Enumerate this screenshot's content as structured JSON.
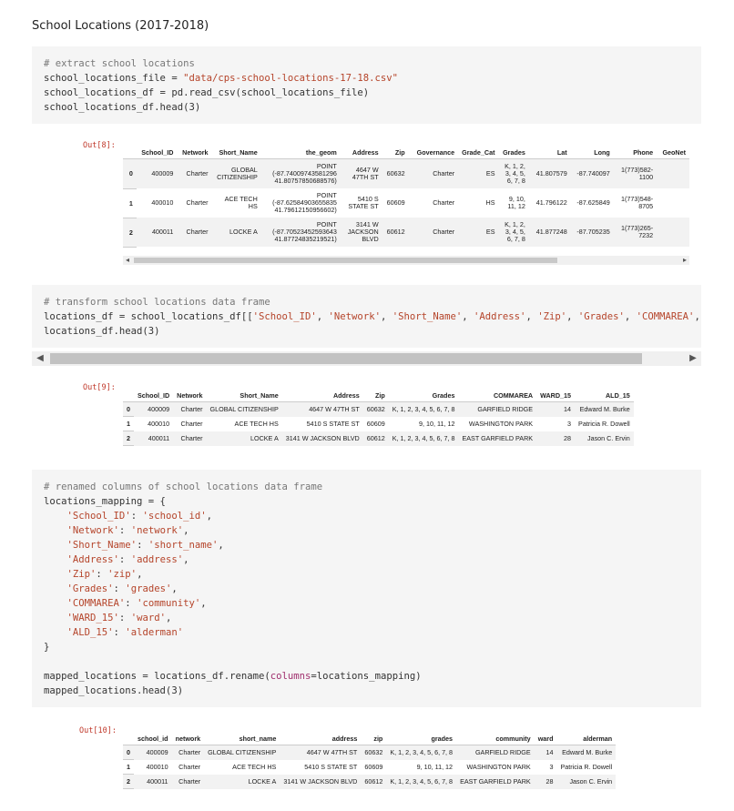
{
  "heading": "School Locations (2017-2018)",
  "cell1": {
    "lines": [
      {
        "parts": [
          {
            "t": "# extract school locations",
            "c": "comment"
          }
        ]
      },
      {
        "parts": [
          {
            "t": "school_locations_file = ",
            "c": ""
          },
          {
            "t": "\"data/cps-school-locations-17-18.csv\"",
            "c": "str"
          }
        ]
      },
      {
        "parts": [
          {
            "t": "school_locations_df = pd.read_csv(school_locations_file)",
            "c": ""
          }
        ]
      },
      {
        "parts": [
          {
            "t": "school_locations_df.head(3)",
            "c": ""
          }
        ]
      }
    ]
  },
  "out8": {
    "label": "Out[8]:",
    "columns": [
      "",
      "School_ID",
      "Network",
      "Short_Name",
      "the_geom",
      "Address",
      "Zip",
      "Governance",
      "Grade_Cat",
      "Grades",
      "Lat",
      "Long",
      "Phone",
      "GeoNet"
    ],
    "rows": [
      [
        "0",
        "400009",
        "Charter",
        "GLOBAL CITIZENSHIP",
        "POINT (-87.74009743581296 41.80757850688576)",
        "4647 W 47TH ST",
        "60632",
        "Charter",
        "ES",
        "K, 1, 2, 3, 4, 5, 6, 7, 8",
        "41.807579",
        "-87.740097",
        "1(773)582-1100",
        ""
      ],
      [
        "1",
        "400010",
        "Charter",
        "ACE TECH HS",
        "POINT (-87.62584903655835 41.79612150956602)",
        "5410 S STATE ST",
        "60609",
        "Charter",
        "HS",
        "9, 10, 11, 12",
        "41.796122",
        "-87.625849",
        "1(773)548-8705",
        ""
      ],
      [
        "2",
        "400011",
        "Charter",
        "LOCKE A",
        "POINT (-87.70523452593643 41.87724835219521)",
        "3141 W JACKSON BLVD",
        "60612",
        "Charter",
        "ES",
        "K, 1, 2, 3, 4, 5, 6, 7, 8",
        "41.877248",
        "-87.705235",
        "1(773)265-7232",
        ""
      ]
    ]
  },
  "cell2": {
    "lines": [
      {
        "parts": [
          {
            "t": "# transform school locations data frame",
            "c": "comment"
          }
        ]
      },
      {
        "parts": [
          {
            "t": "locations_df = school_locations_df[[",
            "c": ""
          },
          {
            "t": "'School_ID'",
            "c": "str"
          },
          {
            "t": ", ",
            "c": ""
          },
          {
            "t": "'Network'",
            "c": "str"
          },
          {
            "t": ", ",
            "c": ""
          },
          {
            "t": "'Short_Name'",
            "c": "str"
          },
          {
            "t": ", ",
            "c": ""
          },
          {
            "t": "'Address'",
            "c": "str"
          },
          {
            "t": ", ",
            "c": ""
          },
          {
            "t": "'Zip'",
            "c": "str"
          },
          {
            "t": ", ",
            "c": ""
          },
          {
            "t": "'Grades'",
            "c": "str"
          },
          {
            "t": ", ",
            "c": ""
          },
          {
            "t": "'COMMAREA'",
            "c": "str"
          },
          {
            "t": ", ",
            "c": ""
          },
          {
            "t": "'W",
            "c": "str"
          }
        ]
      },
      {
        "parts": [
          {
            "t": "locations_df.head(3)",
            "c": ""
          }
        ]
      }
    ]
  },
  "out9": {
    "label": "Out[9]:",
    "columns": [
      "",
      "School_ID",
      "Network",
      "Short_Name",
      "Address",
      "Zip",
      "Grades",
      "COMMAREA",
      "WARD_15",
      "ALD_15"
    ],
    "rows": [
      [
        "0",
        "400009",
        "Charter",
        "GLOBAL CITIZENSHIP",
        "4647 W 47TH ST",
        "60632",
        "K, 1, 2, 3, 4, 5, 6, 7, 8",
        "GARFIELD RIDGE",
        "14",
        "Edward M. Burke"
      ],
      [
        "1",
        "400010",
        "Charter",
        "ACE TECH HS",
        "5410 S STATE ST",
        "60609",
        "9, 10, 11, 12",
        "WASHINGTON PARK",
        "3",
        "Patricia R. Dowell"
      ],
      [
        "2",
        "400011",
        "Charter",
        "LOCKE A",
        "3141 W JACKSON BLVD",
        "60612",
        "K, 1, 2, 3, 4, 5, 6, 7, 8",
        "EAST GARFIELD PARK",
        "28",
        "Jason C. Ervin"
      ]
    ]
  },
  "cell3": {
    "lines": [
      {
        "parts": [
          {
            "t": "# renamed columns of school locations data frame",
            "c": "comment"
          }
        ]
      },
      {
        "parts": [
          {
            "t": "locations_mapping = {",
            "c": ""
          }
        ]
      },
      {
        "parts": [
          {
            "t": "    ",
            "c": ""
          },
          {
            "t": "'School_ID'",
            "c": "str"
          },
          {
            "t": ": ",
            "c": ""
          },
          {
            "t": "'school_id'",
            "c": "str"
          },
          {
            "t": ",",
            "c": ""
          }
        ]
      },
      {
        "parts": [
          {
            "t": "    ",
            "c": ""
          },
          {
            "t": "'Network'",
            "c": "str"
          },
          {
            "t": ": ",
            "c": ""
          },
          {
            "t": "'network'",
            "c": "str"
          },
          {
            "t": ",",
            "c": ""
          }
        ]
      },
      {
        "parts": [
          {
            "t": "    ",
            "c": ""
          },
          {
            "t": "'Short_Name'",
            "c": "str"
          },
          {
            "t": ": ",
            "c": ""
          },
          {
            "t": "'short_name'",
            "c": "str"
          },
          {
            "t": ",",
            "c": ""
          }
        ]
      },
      {
        "parts": [
          {
            "t": "    ",
            "c": ""
          },
          {
            "t": "'Address'",
            "c": "str"
          },
          {
            "t": ": ",
            "c": ""
          },
          {
            "t": "'address'",
            "c": "str"
          },
          {
            "t": ",",
            "c": ""
          }
        ]
      },
      {
        "parts": [
          {
            "t": "    ",
            "c": ""
          },
          {
            "t": "'Zip'",
            "c": "str"
          },
          {
            "t": ": ",
            "c": ""
          },
          {
            "t": "'zip'",
            "c": "str"
          },
          {
            "t": ",",
            "c": ""
          }
        ]
      },
      {
        "parts": [
          {
            "t": "    ",
            "c": ""
          },
          {
            "t": "'Grades'",
            "c": "str"
          },
          {
            "t": ": ",
            "c": ""
          },
          {
            "t": "'grades'",
            "c": "str"
          },
          {
            "t": ",",
            "c": ""
          }
        ]
      },
      {
        "parts": [
          {
            "t": "    ",
            "c": ""
          },
          {
            "t": "'COMMAREA'",
            "c": "str"
          },
          {
            "t": ": ",
            "c": ""
          },
          {
            "t": "'community'",
            "c": "str"
          },
          {
            "t": ",",
            "c": ""
          }
        ]
      },
      {
        "parts": [
          {
            "t": "    ",
            "c": ""
          },
          {
            "t": "'WARD_15'",
            "c": "str"
          },
          {
            "t": ": ",
            "c": ""
          },
          {
            "t": "'ward'",
            "c": "str"
          },
          {
            "t": ",",
            "c": ""
          }
        ]
      },
      {
        "parts": [
          {
            "t": "    ",
            "c": ""
          },
          {
            "t": "'ALD_15'",
            "c": "str"
          },
          {
            "t": ": ",
            "c": ""
          },
          {
            "t": "'alderman'",
            "c": "str"
          }
        ]
      },
      {
        "parts": [
          {
            "t": "}",
            "c": ""
          }
        ]
      },
      {
        "parts": [
          {
            "t": "",
            "c": ""
          }
        ]
      },
      {
        "parts": [
          {
            "t": "mapped_locations = locations_df.rename(",
            "c": ""
          },
          {
            "t": "columns",
            "c": "kw"
          },
          {
            "t": "=locations_mapping)",
            "c": ""
          }
        ]
      },
      {
        "parts": [
          {
            "t": "mapped_locations.head(3)",
            "c": ""
          }
        ]
      }
    ]
  },
  "out10": {
    "label": "Out[10]:",
    "columns": [
      "",
      "school_id",
      "network",
      "short_name",
      "address",
      "zip",
      "grades",
      "community",
      "ward",
      "alderman"
    ],
    "rows": [
      [
        "0",
        "400009",
        "Charter",
        "GLOBAL CITIZENSHIP",
        "4647 W 47TH ST",
        "60632",
        "K, 1, 2, 3, 4, 5, 6, 7, 8",
        "GARFIELD RIDGE",
        "14",
        "Edward M. Burke"
      ],
      [
        "1",
        "400010",
        "Charter",
        "ACE TECH HS",
        "5410 S STATE ST",
        "60609",
        "9, 10, 11, 12",
        "WASHINGTON PARK",
        "3",
        "Patricia R. Dowell"
      ],
      [
        "2",
        "400011",
        "Charter",
        "LOCKE A",
        "3141 W JACKSON BLVD",
        "60612",
        "K, 1, 2, 3, 4, 5, 6, 7, 8",
        "EAST GARFIELD PARK",
        "28",
        "Jason C. Ervin"
      ]
    ]
  },
  "icons": {
    "left_arrow": "◀",
    "right_arrow": "▶",
    "small_left": "◂",
    "small_right": "▸"
  }
}
